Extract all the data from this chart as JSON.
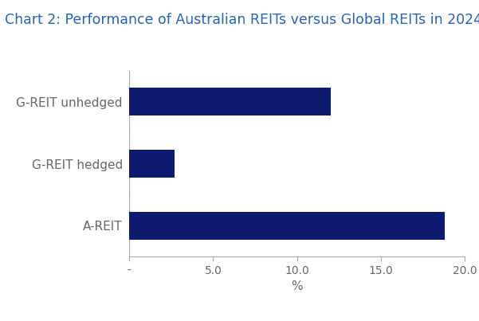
{
  "title": "Chart 2: Performance of Australian REITs versus Global REITs in 2024",
  "categories": [
    "A-REIT",
    "G-REIT hedged",
    "G-REIT unhedged"
  ],
  "values": [
    18.8,
    2.7,
    12.0
  ],
  "bar_color": "#0d1a6e",
  "xlabel": "%",
  "xlim": [
    0,
    20.0
  ],
  "xticks": [
    0,
    5.0,
    10.0,
    15.0,
    20.0
  ],
  "xtick_labels": [
    "-",
    "5.0",
    "10.0",
    "15.0",
    "20.0"
  ],
  "title_color": "#2563b8",
  "title_fontsize": 12.5,
  "label_fontsize": 11,
  "tick_fontsize": 10,
  "background_color": "#ffffff",
  "bar_height": 0.45
}
